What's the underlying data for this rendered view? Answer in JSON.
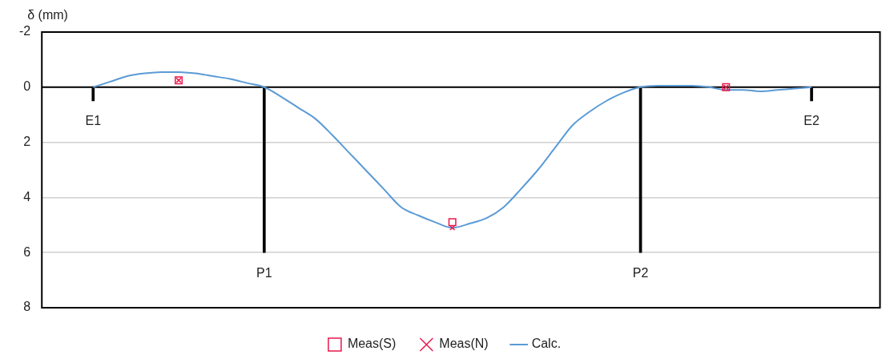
{
  "chart_data": {
    "type": "line",
    "ylabel": "δ (mm)",
    "categories": [
      null,
      null,
      null,
      null,
      null,
      null,
      null,
      null,
      null,
      null,
      null,
      null,
      null,
      null,
      null,
      null,
      null,
      null,
      null,
      null,
      null,
      null,
      null,
      null,
      null,
      null,
      null,
      null,
      null,
      null,
      null,
      null,
      null,
      null,
      null,
      null,
      null,
      null,
      null,
      null,
      null,
      null,
      null,
      null,
      null,
      null,
      null,
      null,
      null,
      null
    ],
    "series": [
      {
        "type": "bar",
        "color": "#000000",
        "values": [
          null,
          null,
          null,
          0.5,
          null,
          null,
          null,
          null,
          null,
          null,
          null,
          null,
          null,
          6,
          null,
          null,
          null,
          null,
          null,
          null,
          null,
          null,
          null,
          null,
          null,
          null,
          null,
          null,
          null,
          null,
          null,
          null,
          null,
          null,
          null,
          6,
          null,
          null,
          null,
          null,
          null,
          null,
          null,
          null,
          null,
          0.5,
          null,
          null,
          null,
          null
        ]
      },
      {
        "name": "Meas(S)",
        "type": "scatter",
        "marker": "square",
        "color": "#e8194b",
        "values": [
          null,
          null,
          null,
          null,
          null,
          null,
          null,
          null,
          -0.25,
          null,
          null,
          null,
          null,
          null,
          null,
          null,
          null,
          null,
          null,
          null,
          null,
          null,
          null,
          null,
          4.9,
          null,
          null,
          null,
          null,
          null,
          null,
          null,
          null,
          null,
          null,
          null,
          null,
          null,
          null,
          null,
          0,
          null,
          null,
          null,
          null,
          null,
          null,
          null,
          null,
          null
        ]
      },
      {
        "name": "Meas(N)",
        "type": "scatter",
        "marker": "cross",
        "color": "#e8194b",
        "values": [
          null,
          null,
          null,
          null,
          null,
          null,
          null,
          null,
          -0.25,
          null,
          null,
          null,
          null,
          null,
          null,
          null,
          null,
          null,
          null,
          null,
          null,
          null,
          null,
          null,
          5.1,
          null,
          null,
          null,
          null,
          null,
          null,
          null,
          null,
          null,
          null,
          null,
          null,
          null,
          null,
          null,
          0,
          null,
          null,
          null,
          null,
          null,
          null,
          null,
          null,
          null
        ]
      },
      {
        "name": "Calc.",
        "marker": "none",
        "line_style": "solid",
        "color": "#5b9bd5",
        "values": [
          null,
          null,
          null,
          0,
          -0.2,
          -0.4,
          -0.5,
          -0.55,
          -0.55,
          -0.5,
          -0.4,
          -0.3,
          -0.15,
          0,
          0.35,
          0.75,
          1.15,
          1.75,
          2.4,
          3.05,
          3.7,
          4.35,
          4.65,
          4.9,
          5.1,
          4.95,
          4.75,
          4.35,
          3.7,
          3.0,
          2.2,
          1.4,
          0.9,
          0.5,
          0.2,
          0,
          -0.05,
          -0.05,
          -0.05,
          0,
          0.1,
          0.1,
          0.15,
          0.1,
          0.05,
          0,
          null,
          null,
          null,
          null
        ]
      }
    ],
    "ylim": [
      8,
      -2
    ],
    "yticks": [
      -2,
      0,
      2,
      4,
      6,
      8
    ],
    "ref_lines": [
      {
        "axis": "y",
        "value": 0,
        "color": "#000000"
      }
    ],
    "annotations": [
      "E1",
      "P1",
      "P2",
      "E2"
    ],
    "grid": "y",
    "legend": "bottom",
    "tick_labels": "y"
  }
}
